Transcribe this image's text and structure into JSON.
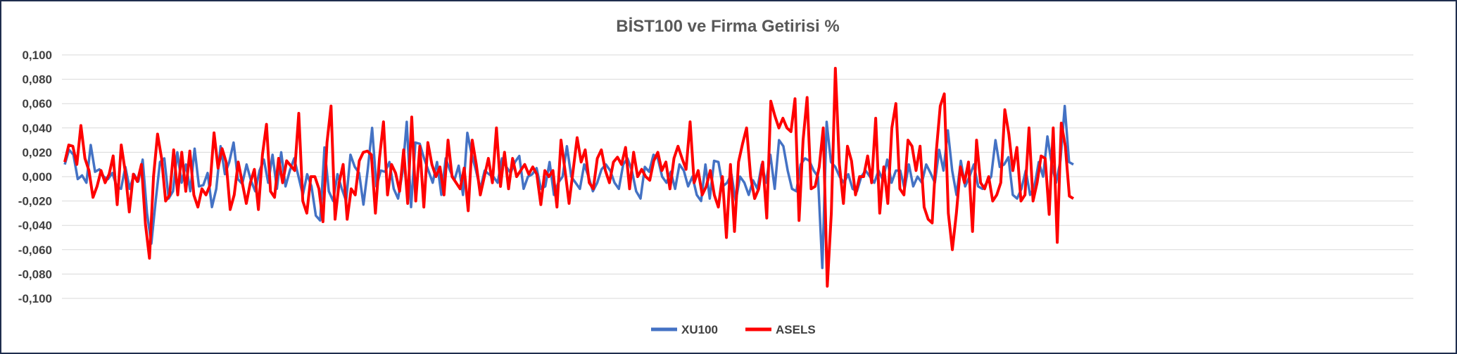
{
  "chart_data": {
    "type": "line",
    "title": "BİST100 ve Firma Getirisi %",
    "xlabel": "",
    "ylabel": "",
    "ylim": [
      -0.1,
      0.1
    ],
    "yticks": [
      0.1,
      0.08,
      0.06,
      0.04,
      0.02,
      0.0,
      -0.02,
      -0.04,
      -0.06,
      -0.08,
      -0.1
    ],
    "ytick_labels": [
      "0,100",
      "0,080",
      "0,060",
      "0,040",
      "0,020",
      "0,000",
      "-0,020",
      "-0,040",
      "-0,060",
      "-0,080",
      "-0,100"
    ],
    "grid": true,
    "legend_position": "bottom",
    "series": [
      {
        "name": "XU100",
        "color": "#4472c4",
        "values": [
          0.01,
          0.022,
          0.018,
          -0.002,
          0.001,
          -0.005,
          0.026,
          0.004,
          0.006,
          0.0,
          -0.002,
          0.003,
          -0.008,
          -0.01,
          0.008,
          -0.01,
          0.002,
          -0.004,
          0.014,
          -0.03,
          -0.055,
          -0.02,
          0.012,
          0.015,
          -0.018,
          -0.012,
          0.02,
          -0.005,
          0.01,
          -0.012,
          0.023,
          -0.008,
          -0.007,
          0.003,
          -0.025,
          -0.01,
          0.025,
          0.002,
          0.012,
          0.028,
          -0.002,
          -0.006,
          0.01,
          -0.003,
          -0.012,
          0.005,
          0.014,
          -0.005,
          0.018,
          -0.01,
          0.02,
          -0.008,
          0.005,
          0.015,
          0.0,
          -0.015,
          0.002,
          -0.008,
          -0.032,
          -0.036,
          0.024,
          -0.012,
          -0.02,
          0.002,
          -0.01,
          -0.02,
          0.018,
          0.008,
          0.003,
          -0.023,
          0.006,
          0.04,
          -0.008,
          0.005,
          0.004,
          0.012,
          -0.01,
          -0.018,
          0.003,
          0.045,
          -0.025,
          0.028,
          0.027,
          0.015,
          0.005,
          -0.005,
          0.012,
          -0.015,
          0.015,
          0.005,
          -0.003,
          0.009,
          -0.015,
          0.036,
          0.018,
          0.005,
          -0.01,
          0.005,
          0.002,
          0.0,
          -0.005,
          0.015,
          0.008,
          0.003,
          0.012,
          0.017,
          -0.01,
          0.0,
          0.002,
          0.007,
          -0.01,
          -0.008,
          0.012,
          -0.015,
          -0.005,
          0.0,
          0.025,
          0.0,
          -0.005,
          -0.01,
          0.01,
          0.0,
          -0.012,
          -0.005,
          0.006,
          0.01,
          0.005,
          -0.005,
          -0.01,
          0.01,
          0.015,
          0.005,
          -0.012,
          -0.018,
          0.008,
          0.004,
          0.018,
          0.015,
          0.0,
          -0.005,
          0.004,
          -0.01,
          0.01,
          0.005,
          -0.008,
          0.0,
          -0.015,
          -0.02,
          0.01,
          -0.018,
          0.013,
          0.012,
          -0.008,
          -0.005,
          0.002,
          -0.02,
          0.0,
          -0.005,
          -0.015,
          -0.003,
          -0.01,
          0.01,
          -0.005,
          0.018,
          -0.01,
          0.03,
          0.025,
          0.005,
          -0.01,
          -0.012,
          0.01,
          0.015,
          0.013,
          0.005,
          0.0,
          -0.075,
          0.045,
          0.012,
          0.008,
          0.0,
          -0.005,
          0.002,
          -0.01,
          -0.012,
          0.0,
          0.005,
          0.0,
          -0.005,
          0.005,
          -0.003,
          0.014,
          -0.005,
          0.005,
          0.005,
          -0.01,
          0.01,
          -0.008,
          0.0,
          -0.005,
          0.01,
          0.003,
          -0.005,
          0.022,
          0.005,
          0.038,
          0.005,
          -0.015,
          0.013,
          -0.008,
          0.0,
          0.01,
          -0.008,
          -0.01,
          -0.005,
          0.0,
          0.03,
          0.008,
          0.01,
          0.016,
          -0.015,
          -0.018,
          -0.01,
          0.005,
          -0.015,
          -0.008,
          0.012,
          0.0,
          0.033,
          0.01,
          -0.005,
          0.013,
          0.058,
          0.012,
          0.01
        ],
        "x_extent": 1127
      },
      {
        "name": "ASELS",
        "color": "#ff0000",
        "values": [
          0.012,
          0.026,
          0.025,
          0.01,
          0.042,
          0.015,
          0.005,
          -0.017,
          -0.008,
          0.005,
          -0.005,
          0.002,
          0.017,
          -0.023,
          0.026,
          0.004,
          -0.029,
          0.002,
          -0.004,
          0.01,
          -0.039,
          -0.067,
          0.0,
          0.035,
          0.015,
          -0.02,
          -0.015,
          0.022,
          -0.015,
          0.02,
          -0.012,
          0.021,
          -0.015,
          -0.025,
          -0.01,
          -0.015,
          -0.007,
          0.036,
          0.007,
          0.023,
          0.012,
          -0.027,
          -0.015,
          0.012,
          -0.005,
          -0.022,
          -0.005,
          0.006,
          -0.027,
          0.018,
          0.043,
          -0.012,
          -0.017,
          0.015,
          -0.005,
          0.013,
          0.009,
          0.005,
          0.052,
          -0.02,
          -0.03,
          0.0,
          0.0,
          -0.01,
          -0.037,
          0.028,
          0.058,
          -0.035,
          -0.005,
          0.01,
          -0.035,
          -0.01,
          -0.015,
          0.013,
          0.02,
          0.021,
          0.018,
          -0.03,
          0.015,
          0.045,
          -0.015,
          0.01,
          0.003,
          -0.012,
          0.022,
          -0.022,
          0.049,
          -0.02,
          0.025,
          -0.025,
          0.028,
          0.01,
          0.0,
          0.008,
          -0.015,
          0.03,
          0.0,
          -0.005,
          -0.01,
          0.007,
          -0.028,
          0.03,
          0.01,
          -0.015,
          0.0,
          0.015,
          -0.005,
          0.04,
          -0.008,
          0.02,
          -0.01,
          0.015,
          0.0,
          0.005,
          0.01,
          0.002,
          0.008,
          0.002,
          -0.023,
          0.005,
          0.0,
          0.005,
          -0.025,
          0.03,
          0.005,
          -0.022,
          0.005,
          0.032,
          0.012,
          0.022,
          -0.005,
          -0.01,
          0.015,
          0.022,
          0.005,
          -0.005,
          0.012,
          0.016,
          0.01,
          0.024,
          -0.01,
          0.02,
          0.0,
          0.006,
          0.0,
          -0.003,
          0.013,
          0.02,
          0.005,
          0.012,
          -0.01,
          0.015,
          0.025,
          0.015,
          0.006,
          0.045,
          -0.005,
          0.005,
          -0.015,
          -0.008,
          0.005,
          -0.015,
          -0.025,
          0.0,
          -0.05,
          0.01,
          -0.045,
          0.012,
          0.027,
          0.04,
          0.0,
          -0.018,
          -0.01,
          0.012,
          -0.034,
          0.062,
          0.05,
          0.04,
          0.048,
          0.04,
          0.037,
          0.064,
          -0.036,
          0.03,
          0.065,
          -0.01,
          -0.008,
          0.008,
          0.04,
          -0.09,
          -0.03,
          0.089,
          0.01,
          -0.022,
          0.025,
          0.013,
          -0.015,
          0.0,
          0.0,
          0.017,
          -0.005,
          0.048,
          -0.03,
          0.008,
          -0.022,
          0.04,
          0.06,
          -0.01,
          -0.015,
          0.03,
          0.025,
          0.005,
          0.025,
          -0.025,
          -0.035,
          -0.038,
          0.02,
          0.058,
          0.068,
          -0.03,
          -0.06,
          -0.03,
          0.008,
          -0.005,
          0.012,
          -0.045,
          0.03,
          -0.005,
          -0.01,
          0.0,
          -0.02,
          -0.015,
          -0.005,
          0.055,
          0.035,
          0.005,
          0.024,
          -0.02,
          -0.015,
          0.04,
          -0.02,
          -0.005,
          0.017,
          0.015,
          -0.031,
          0.04,
          -0.054,
          0.044,
          0.025,
          -0.016,
          -0.018
        ],
        "x_extent": 1127
      }
    ]
  }
}
